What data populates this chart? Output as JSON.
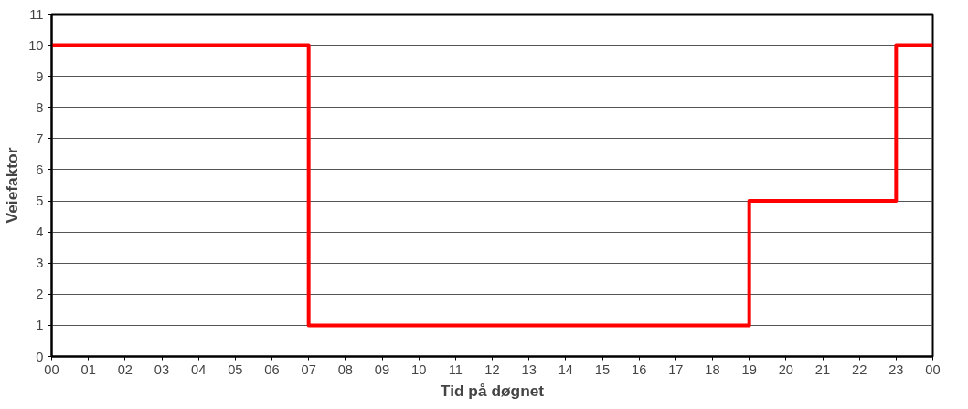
{
  "chart_data": {
    "type": "step",
    "xlabel": "Tid på døgnet",
    "ylabel": "Veiefaktor",
    "x": [
      0,
      7,
      19,
      23,
      24
    ],
    "series": [
      {
        "color": "#ff0000",
        "values": [
          10,
          1,
          5,
          10,
          10
        ]
      }
    ],
    "xlim": [
      0,
      24
    ],
    "xticks": [
      {
        "value": 0,
        "label": "00"
      },
      {
        "value": 1,
        "label": "01"
      },
      {
        "value": 2,
        "label": "02"
      },
      {
        "value": 3,
        "label": "03"
      },
      {
        "value": 4,
        "label": "04"
      },
      {
        "value": 5,
        "label": "05"
      },
      {
        "value": 6,
        "label": "06"
      },
      {
        "value": 7,
        "label": "07"
      },
      {
        "value": 8,
        "label": "08"
      },
      {
        "value": 9,
        "label": "09"
      },
      {
        "value": 10,
        "label": "10"
      },
      {
        "value": 11,
        "label": "11"
      },
      {
        "value": 12,
        "label": "12"
      },
      {
        "value": 13,
        "label": "13"
      },
      {
        "value": 14,
        "label": "14"
      },
      {
        "value": 15,
        "label": "15"
      },
      {
        "value": 16,
        "label": "16"
      },
      {
        "value": 17,
        "label": "17"
      },
      {
        "value": 18,
        "label": "18"
      },
      {
        "value": 19,
        "label": "19"
      },
      {
        "value": 20,
        "label": "20"
      },
      {
        "value": 21,
        "label": "21"
      },
      {
        "value": 22,
        "label": "22"
      },
      {
        "value": 23,
        "label": "23"
      },
      {
        "value": 24,
        "label": "00"
      }
    ],
    "ylim": [
      0,
      11
    ],
    "yticks": [
      0,
      1,
      2,
      3,
      4,
      5,
      6,
      7,
      8,
      9,
      10,
      11
    ],
    "grid": "y",
    "line_style": "solid"
  }
}
